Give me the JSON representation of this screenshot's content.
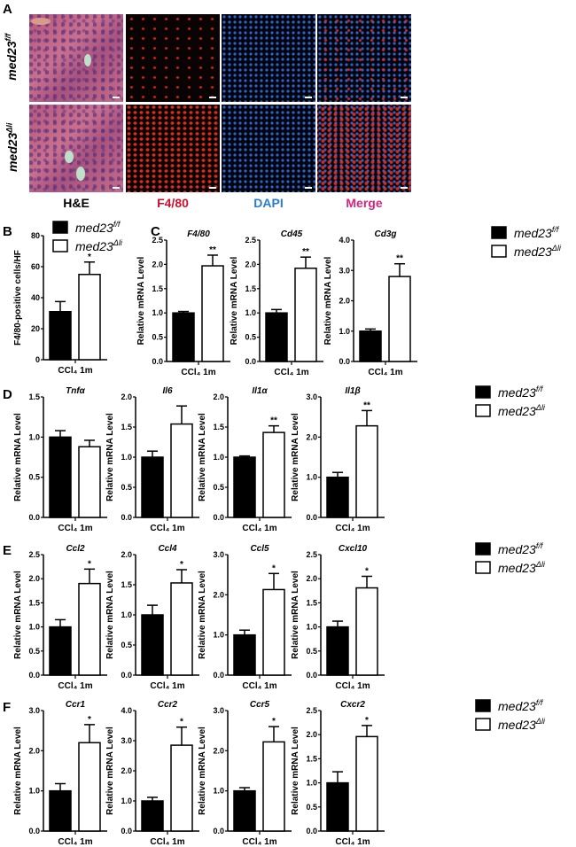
{
  "panel_labels": [
    "A",
    "B",
    "C",
    "D",
    "E",
    "F"
  ],
  "panel_a": {
    "rows": [
      {
        "base": "med23",
        "sup": "f/f"
      },
      {
        "base": "med23",
        "sup": "Δli"
      }
    ],
    "channels": [
      {
        "label": "H&E",
        "color": "#000000"
      },
      {
        "label": "F4/80",
        "color": "#c8102e"
      },
      {
        "label": "DAPI",
        "color": "#2b7cc9"
      },
      {
        "label": "Merge",
        "color": "#d6247f"
      }
    ]
  },
  "legend": [
    {
      "base": "med23",
      "sup": "f/f",
      "fill": "#000000"
    },
    {
      "base": "med23",
      "sup": "Δli",
      "fill": "#ffffff"
    }
  ],
  "chart_data": [
    {
      "panel": "B",
      "type": "bar",
      "title": "",
      "ylabel": "F4/80-positive cells/HF",
      "xlabel": "CCl₄ 1m",
      "ylim": [
        0,
        80
      ],
      "ticks": [
        "0",
        "20",
        "40",
        "60",
        "80"
      ],
      "categories": [
        "med23f/f",
        "med23Δli"
      ],
      "values": [
        31,
        55
      ],
      "errors": [
        6.5,
        8
      ],
      "significance": "*"
    },
    {
      "panel": "C",
      "type": "bar",
      "title": "F4/80",
      "ylabel": "Relative mRNA Level",
      "xlabel": "CCl₄ 1m",
      "ylim": [
        0,
        2.5
      ],
      "ticks": [
        "0.0",
        "0.5",
        "1.0",
        "1.5",
        "2.0",
        "2.5"
      ],
      "categories": [
        "med23f/f",
        "med23Δli"
      ],
      "values": [
        1.0,
        1.97
      ],
      "errors": [
        0.03,
        0.22
      ],
      "significance": "**"
    },
    {
      "panel": "C",
      "type": "bar",
      "title": "Cd45",
      "ylabel": "Relative mRNA Level",
      "xlabel": "CCl₄ 1m",
      "ylim": [
        0,
        2.5
      ],
      "ticks": [
        "0.0",
        "0.5",
        "1.0",
        "1.5",
        "2.0",
        "2.5"
      ],
      "categories": [
        "med23f/f",
        "med23Δli"
      ],
      "values": [
        1.0,
        1.92
      ],
      "errors": [
        0.07,
        0.23
      ],
      "significance": "**"
    },
    {
      "panel": "C",
      "type": "bar",
      "title": "Cd3g",
      "ylabel": "Relative mRNA Level",
      "xlabel": "CCl₄ 1m",
      "ylim": [
        0,
        4.0
      ],
      "ticks": [
        "0.0",
        "1.0",
        "2.0",
        "3.0",
        "4.0"
      ],
      "categories": [
        "med23f/f",
        "med23Δli"
      ],
      "values": [
        1.0,
        2.8
      ],
      "errors": [
        0.07,
        0.42
      ],
      "significance": "**"
    },
    {
      "panel": "D",
      "type": "bar",
      "title": "Tnfα",
      "ylabel": "Relative mRNA Level",
      "xlabel": "CCl₄ 1m",
      "ylim": [
        0,
        1.5
      ],
      "ticks": [
        "0.0",
        "0.5",
        "1.0",
        "1.5"
      ],
      "categories": [
        "med23f/f",
        "med23Δli"
      ],
      "values": [
        1.0,
        0.88
      ],
      "errors": [
        0.08,
        0.08
      ],
      "significance": ""
    },
    {
      "panel": "D",
      "type": "bar",
      "title": "Il6",
      "ylabel": "Relative mRNA Level",
      "xlabel": "CCl₄ 1m",
      "ylim": [
        0,
        2.0
      ],
      "ticks": [
        "0.0",
        "0.5",
        "1.0",
        "1.5",
        "2.0"
      ],
      "categories": [
        "med23f/f",
        "med23Δli"
      ],
      "values": [
        1.0,
        1.55
      ],
      "errors": [
        0.1,
        0.3
      ],
      "significance": ""
    },
    {
      "panel": "D",
      "type": "bar",
      "title": "Il1α",
      "ylabel": "Relative mRNA Level",
      "xlabel": "CCl₄ 1m",
      "ylim": [
        0,
        2.0
      ],
      "ticks": [
        "0.0",
        "0.5",
        "1.0",
        "1.5",
        "2.0"
      ],
      "categories": [
        "med23f/f",
        "med23Δli"
      ],
      "values": [
        1.0,
        1.41
      ],
      "errors": [
        0.02,
        0.11
      ],
      "significance": "**"
    },
    {
      "panel": "D",
      "type": "bar",
      "title": "Il1β",
      "ylabel": "Relative mRNA Level",
      "xlabel": "CCl₄ 1m",
      "ylim": [
        0,
        3.0
      ],
      "ticks": [
        "0.0",
        "1.0",
        "2.0",
        "3.0"
      ],
      "categories": [
        "med23f/f",
        "med23Δli"
      ],
      "values": [
        1.0,
        2.28
      ],
      "errors": [
        0.12,
        0.38
      ],
      "significance": "**"
    },
    {
      "panel": "E",
      "type": "bar",
      "title": "Ccl2",
      "ylabel": "Relative mRNA Level",
      "xlabel": "CCl₄ 1m",
      "ylim": [
        0,
        2.5
      ],
      "ticks": [
        "0.0",
        "0.5",
        "1.0",
        "1.5",
        "2.0",
        "2.5"
      ],
      "categories": [
        "med23f/f",
        "med23Δli"
      ],
      "values": [
        1.0,
        1.9
      ],
      "errors": [
        0.15,
        0.3
      ],
      "significance": "*"
    },
    {
      "panel": "E",
      "type": "bar",
      "title": "Ccl4",
      "ylabel": "Relative mRNA Level",
      "xlabel": "CCl₄ 1m",
      "ylim": [
        0,
        2.0
      ],
      "ticks": [
        "0.0",
        "0.5",
        "1.0",
        "1.5",
        "2.0"
      ],
      "categories": [
        "med23f/f",
        "med23Δli"
      ],
      "values": [
        1.0,
        1.53
      ],
      "errors": [
        0.16,
        0.22
      ],
      "significance": "*"
    },
    {
      "panel": "E",
      "type": "bar",
      "title": "Ccl5",
      "ylabel": "Relative mRNA Level",
      "xlabel": "CCl₄ 1m",
      "ylim": [
        0,
        3.0
      ],
      "ticks": [
        "0.0",
        "1.0",
        "2.0",
        "3.0"
      ],
      "categories": [
        "med23f/f",
        "med23Δli"
      ],
      "values": [
        1.0,
        2.13
      ],
      "errors": [
        0.12,
        0.4
      ],
      "significance": "*"
    },
    {
      "panel": "E",
      "type": "bar",
      "title": "Cxcl10",
      "ylabel": "Relative mRNA Level",
      "xlabel": "CCl₄ 1m",
      "ylim": [
        0,
        2.5
      ],
      "ticks": [
        "0.0",
        "0.5",
        "1.0",
        "1.5",
        "2.0",
        "2.5"
      ],
      "categories": [
        "med23f/f",
        "med23Δli"
      ],
      "values": [
        1.0,
        1.81
      ],
      "errors": [
        0.12,
        0.24
      ],
      "significance": "*"
    },
    {
      "panel": "F",
      "type": "bar",
      "title": "Ccr1",
      "ylabel": "Relative mRNA Level",
      "xlabel": "CCl₄ 1m",
      "ylim": [
        0,
        3.0
      ],
      "ticks": [
        "0.0",
        "1.0",
        "2.0",
        "3.0"
      ],
      "categories": [
        "med23f/f",
        "med23Δli"
      ],
      "values": [
        1.0,
        2.2
      ],
      "errors": [
        0.18,
        0.45
      ],
      "significance": "*"
    },
    {
      "panel": "F",
      "type": "bar",
      "title": "Ccr2",
      "ylabel": "Relative mRNA Level",
      "xlabel": "CCl₄ 1m",
      "ylim": [
        0,
        4.0
      ],
      "ticks": [
        "0.0",
        "1.0",
        "2.0",
        "3.0",
        "4.0"
      ],
      "categories": [
        "med23f/f",
        "med23Δli"
      ],
      "values": [
        1.0,
        2.85
      ],
      "errors": [
        0.12,
        0.6
      ],
      "significance": "*"
    },
    {
      "panel": "F",
      "type": "bar",
      "title": "Ccr5",
      "ylabel": "Relative mRNA Level",
      "xlabel": "CCl₄ 1m",
      "ylim": [
        0,
        3.0
      ],
      "ticks": [
        "0.0",
        "1.0",
        "2.0",
        "3.0"
      ],
      "categories": [
        "med23f/f",
        "med23Δli"
      ],
      "values": [
        1.0,
        2.22
      ],
      "errors": [
        0.08,
        0.38
      ],
      "significance": "*"
    },
    {
      "panel": "F",
      "type": "bar",
      "title": "Cxcr2",
      "ylabel": "Relative mRNA Level",
      "xlabel": "CCl₄ 1m",
      "ylim": [
        0,
        2.5
      ],
      "ticks": [
        "0.0",
        "0.5",
        "1.0",
        "1.5",
        "2.0",
        "2.5"
      ],
      "categories": [
        "med23f/f",
        "med23Δli"
      ],
      "values": [
        1.0,
        1.96
      ],
      "errors": [
        0.23,
        0.23
      ],
      "significance": "*"
    }
  ]
}
